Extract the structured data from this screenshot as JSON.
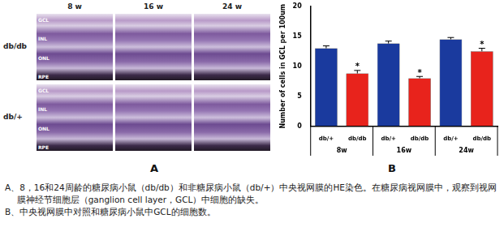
{
  "panel_a": {
    "label": "A",
    "columns": [
      "8 w",
      "16 w",
      "24 w"
    ],
    "rows": [
      {
        "label": "db/db",
        "layers": [
          "GCL",
          "INL",
          "ONL",
          "RPE"
        ]
      },
      {
        "label": "db/+",
        "layers": [
          "GCL",
          "INL",
          "ONL",
          "RPE"
        ]
      }
    ]
  },
  "chart_data": {
    "type": "bar",
    "panel_label": "B",
    "y_label": "Number of cells in GCL per 100um",
    "categories": [
      "db/+",
      "db/db",
      "db/+",
      "db/db",
      "db/+",
      "db/db"
    ],
    "groups": [
      "8w",
      "16w",
      "24w"
    ],
    "values": [
      13.0,
      8.8,
      13.8,
      8.0,
      14.5,
      12.5
    ],
    "errors": [
      0.4,
      0.5,
      0.4,
      0.3,
      0.3,
      0.5
    ],
    "annotations": [
      null,
      "*",
      null,
      "*",
      null,
      "*"
    ],
    "colors": [
      "#1a3a9e",
      "#e8231c",
      "#1a3a9e",
      "#e8231c",
      "#1a3a9e",
      "#e8231c"
    ],
    "ylim": [
      0,
      20
    ],
    "yticks": [
      0,
      5,
      10,
      15,
      20
    ],
    "grid": false
  },
  "caption": [
    "A、8，16和24周龄的糖尿病小鼠（db/db）和非糖尿病小鼠（db/+）中央视网膜的HE染色。在糖尿病视网膜中，观察到视网膜神经节细胞层（ganglion cell layer，GCL）中细胞的缺失。",
    "B、中央视网膜中对照和糖尿病小鼠中GCL的细胞数。"
  ]
}
